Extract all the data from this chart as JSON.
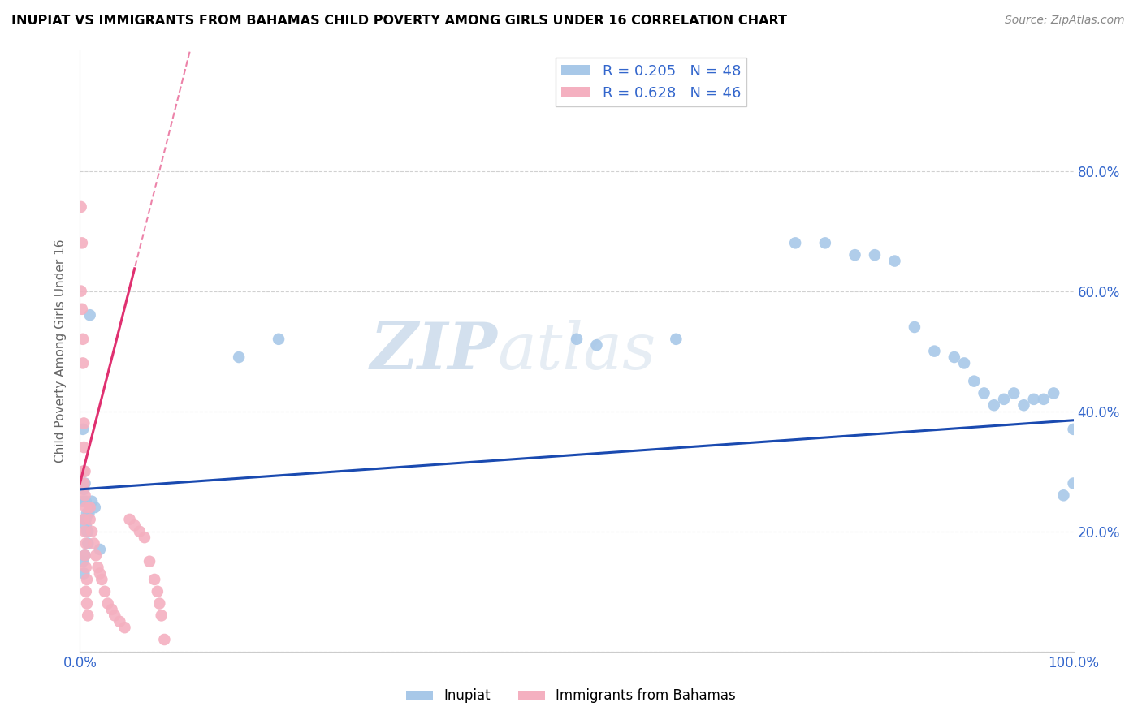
{
  "title": "INUPIAT VS IMMIGRANTS FROM BAHAMAS CHILD POVERTY AMONG GIRLS UNDER 16 CORRELATION CHART",
  "source": "Source: ZipAtlas.com",
  "ylabel": "Child Poverty Among Girls Under 16",
  "xlim": [
    0,
    1.0
  ],
  "ylim": [
    0,
    1.0
  ],
  "xticks": [
    0.0,
    0.2,
    0.4,
    0.6,
    0.8,
    1.0
  ],
  "xtick_labels": [
    "0.0%",
    "",
    "",
    "",
    "",
    "100.0%"
  ],
  "ytick_labels": [
    "",
    "20.0%",
    "40.0%",
    "60.0%",
    "80.0%"
  ],
  "yticks": [
    0.0,
    0.2,
    0.4,
    0.6,
    0.8
  ],
  "inupiat_color": "#a8c8e8",
  "bahamas_color": "#f4b0c0",
  "inupiat_line_color": "#1a4ab0",
  "bahamas_line_color": "#e03070",
  "label_color": "#3366cc",
  "R_inupiat": 0.205,
  "N_inupiat": 48,
  "R_bahamas": 0.628,
  "N_bahamas": 46,
  "watermark_zip": "ZIP",
  "watermark_atlas": "atlas",
  "inupiat_x": [
    0.003,
    0.004,
    0.005,
    0.006,
    0.007,
    0.008,
    0.003,
    0.005,
    0.004,
    0.006,
    0.007,
    0.003,
    0.004,
    0.005,
    0.006,
    0.008,
    0.009,
    0.01,
    0.012,
    0.015,
    0.01,
    0.02,
    0.16,
    0.2,
    0.5,
    0.52,
    0.6,
    0.72,
    0.75,
    0.78,
    0.8,
    0.82,
    0.84,
    0.86,
    0.88,
    0.89,
    0.9,
    0.91,
    0.92,
    0.93,
    0.94,
    0.95,
    0.96,
    0.97,
    0.98,
    0.99,
    1.0,
    1.0
  ],
  "inupiat_y": [
    0.37,
    0.3,
    0.22,
    0.25,
    0.2,
    0.18,
    0.15,
    0.16,
    0.13,
    0.22,
    0.23,
    0.25,
    0.27,
    0.28,
    0.21,
    0.2,
    0.23,
    0.24,
    0.25,
    0.24,
    0.56,
    0.17,
    0.49,
    0.52,
    0.52,
    0.51,
    0.52,
    0.68,
    0.68,
    0.66,
    0.66,
    0.65,
    0.54,
    0.5,
    0.49,
    0.48,
    0.45,
    0.43,
    0.41,
    0.42,
    0.43,
    0.41,
    0.42,
    0.42,
    0.43,
    0.26,
    0.37,
    0.28
  ],
  "bahamas_x": [
    0.001,
    0.002,
    0.001,
    0.002,
    0.003,
    0.003,
    0.004,
    0.004,
    0.005,
    0.003,
    0.004,
    0.005,
    0.006,
    0.004,
    0.005,
    0.006,
    0.005,
    0.006,
    0.007,
    0.006,
    0.007,
    0.008,
    0.01,
    0.01,
    0.012,
    0.014,
    0.016,
    0.018,
    0.02,
    0.022,
    0.025,
    0.028,
    0.032,
    0.035,
    0.04,
    0.045,
    0.05,
    0.055,
    0.06,
    0.065,
    0.07,
    0.075,
    0.078,
    0.08,
    0.082,
    0.085
  ],
  "bahamas_y": [
    0.74,
    0.68,
    0.6,
    0.57,
    0.52,
    0.48,
    0.38,
    0.34,
    0.3,
    0.3,
    0.28,
    0.26,
    0.24,
    0.22,
    0.2,
    0.18,
    0.16,
    0.14,
    0.12,
    0.1,
    0.08,
    0.06,
    0.24,
    0.22,
    0.2,
    0.18,
    0.16,
    0.14,
    0.13,
    0.12,
    0.1,
    0.08,
    0.07,
    0.06,
    0.05,
    0.04,
    0.22,
    0.21,
    0.2,
    0.19,
    0.15,
    0.12,
    0.1,
    0.08,
    0.06,
    0.02
  ]
}
